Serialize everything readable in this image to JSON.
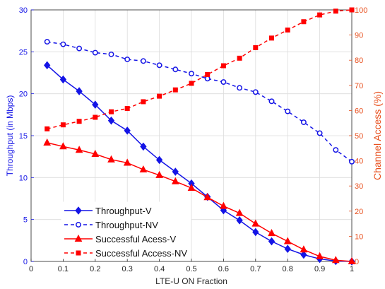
{
  "chart_data": {
    "type": "line",
    "xlabel": "LTE-U ON Fraction",
    "ylabel_left": "Throughput (in Mbps)",
    "ylabel_right": "Channel Access (%)",
    "xlim": [
      0,
      1
    ],
    "ylim_left": [
      0,
      30
    ],
    "ylim_right": [
      0,
      100
    ],
    "x_ticks": [
      "0",
      "0.1",
      "0.2",
      "0.3",
      "0.4",
      "0.5",
      "0.6",
      "0.7",
      "0.8",
      "0.9",
      "1"
    ],
    "y_ticks_left": [
      "0",
      "5",
      "10",
      "15",
      "20",
      "25",
      "30"
    ],
    "y_ticks_right": [
      "0",
      "10",
      "20",
      "30",
      "40",
      "50",
      "60",
      "70",
      "80",
      "90",
      "100"
    ],
    "x": [
      0.05,
      0.1,
      0.15,
      0.2,
      0.25,
      0.3,
      0.35,
      0.4,
      0.45,
      0.5,
      0.55,
      0.6,
      0.65,
      0.7,
      0.75,
      0.8,
      0.85,
      0.9,
      0.95,
      1.0
    ],
    "grid": true,
    "legend_position": "bottom-left",
    "colors": {
      "blue": "#1414e6",
      "red": "#ff0000",
      "right_axis": "#e8501e"
    },
    "series": [
      {
        "name": "Throughput-V",
        "axis": "left",
        "color": "#1414e6",
        "line": "solid",
        "marker": "diamond",
        "values": [
          23.4,
          21.7,
          20.3,
          18.7,
          16.8,
          15.6,
          13.7,
          12.1,
          10.7,
          9.3,
          7.7,
          6.1,
          4.9,
          3.5,
          2.4,
          1.5,
          0.8,
          0.3,
          0.05,
          0
        ]
      },
      {
        "name": "Throughput-NV",
        "axis": "left",
        "color": "#1414e6",
        "line": "dashed",
        "marker": "circle",
        "values": [
          26.2,
          25.9,
          25.4,
          24.9,
          24.7,
          24.1,
          23.9,
          23.4,
          22.9,
          22.4,
          21.8,
          21.4,
          20.7,
          20.2,
          19.1,
          17.9,
          16.6,
          15.3,
          13.3,
          11.9
        ]
      },
      {
        "name": "Successful Acess-V",
        "axis": "right",
        "color": "#ff0000",
        "line": "solid",
        "marker": "triangle",
        "values": [
          47.2,
          45.7,
          44.3,
          42.7,
          40.5,
          39.2,
          36.5,
          34.3,
          31.8,
          29.2,
          25.5,
          22.0,
          19.2,
          15.0,
          11.2,
          8.0,
          4.7,
          2.0,
          0.5,
          0
        ]
      },
      {
        "name": "Successful Access-NV",
        "axis": "right",
        "color": "#ff0000",
        "line": "dashed",
        "marker": "square",
        "values": [
          52.7,
          54.3,
          55.7,
          57.3,
          59.5,
          60.8,
          63.5,
          65.7,
          68.2,
          70.8,
          74.3,
          77.8,
          80.8,
          85.0,
          88.8,
          92.0,
          95.3,
          98.0,
          99.5,
          100
        ]
      }
    ]
  }
}
